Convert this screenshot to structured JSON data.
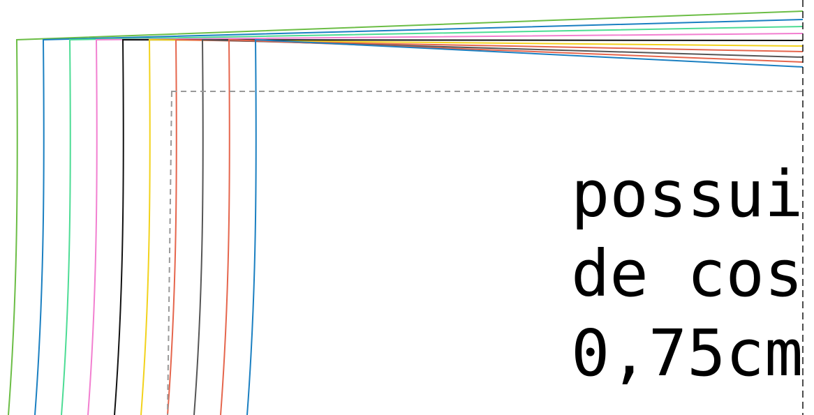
{
  "note": {
    "lines": [
      "possui margem",
      "de costura",
      "0,75cm"
    ]
  },
  "palette": {
    "green": "#6bbd45",
    "blue": "#1a7fc1",
    "mint": "#4cdc94",
    "pink": "#f27fd0",
    "black": "#111111",
    "yellow": "#f2d21b",
    "red": "#e5654c",
    "gray": "#555555",
    "guide": "#999999"
  },
  "size_lines": [
    {
      "name": "size-line-1",
      "color": "#6bbd45"
    },
    {
      "name": "size-line-2",
      "color": "#1a7fc1"
    },
    {
      "name": "size-line-3",
      "color": "#4cdc94"
    },
    {
      "name": "size-line-4",
      "color": "#f27fd0"
    },
    {
      "name": "size-line-5",
      "color": "#111111"
    },
    {
      "name": "size-line-6",
      "color": "#f2d21b"
    },
    {
      "name": "size-line-7",
      "color": "#e5654c"
    },
    {
      "name": "size-line-8",
      "color": "#555555"
    },
    {
      "name": "size-line-9",
      "color": "#e5654c"
    },
    {
      "name": "size-line-10",
      "color": "#1a7fc1"
    }
  ]
}
